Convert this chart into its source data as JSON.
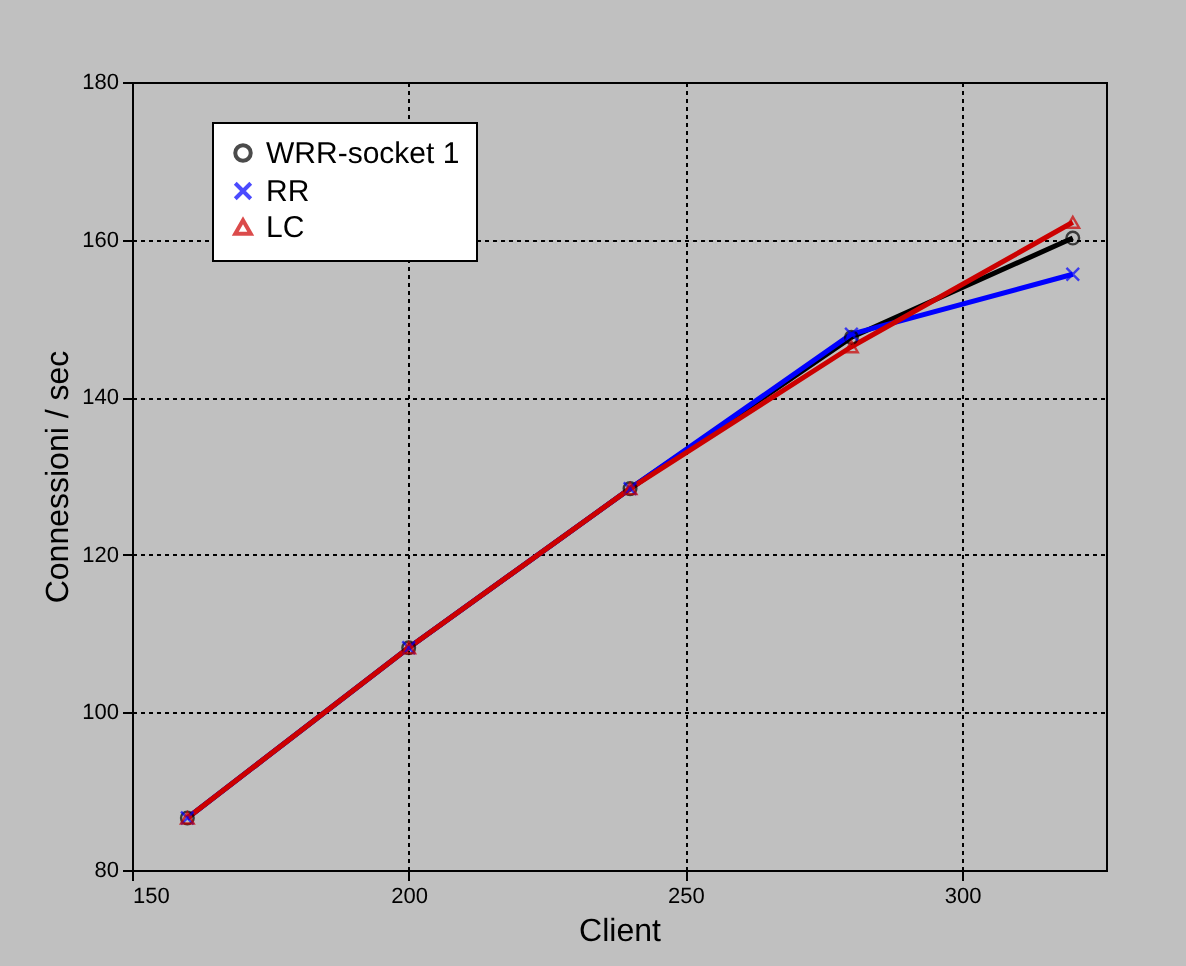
{
  "chart_data": {
    "type": "line",
    "xlabel": "Client",
    "ylabel": "Connessioni / sec",
    "x": [
      160,
      200,
      240,
      280,
      320
    ],
    "series": [
      {
        "name": "WRR-socket 1",
        "color": "#000000",
        "marker": "circle",
        "values": [
          86.6,
          108.2,
          128.4,
          147.6,
          160.2
        ]
      },
      {
        "name": "RR",
        "color": "#0000ff",
        "marker": "cross",
        "values": [
          86.6,
          108.2,
          128.4,
          148.0,
          155.6
        ]
      },
      {
        "name": "LC",
        "color": "#cc0000",
        "marker": "triangle",
        "values": [
          86.6,
          108.2,
          128.4,
          146.4,
          162.2
        ]
      }
    ],
    "xlim": [
      150,
      326
    ],
    "xticks": [
      150,
      200,
      250,
      300
    ],
    "ylim": [
      80,
      180
    ],
    "yticks": [
      80,
      100,
      120,
      140,
      160,
      180
    ],
    "grid": true,
    "legend": "top left",
    "line_style": "solid"
  }
}
